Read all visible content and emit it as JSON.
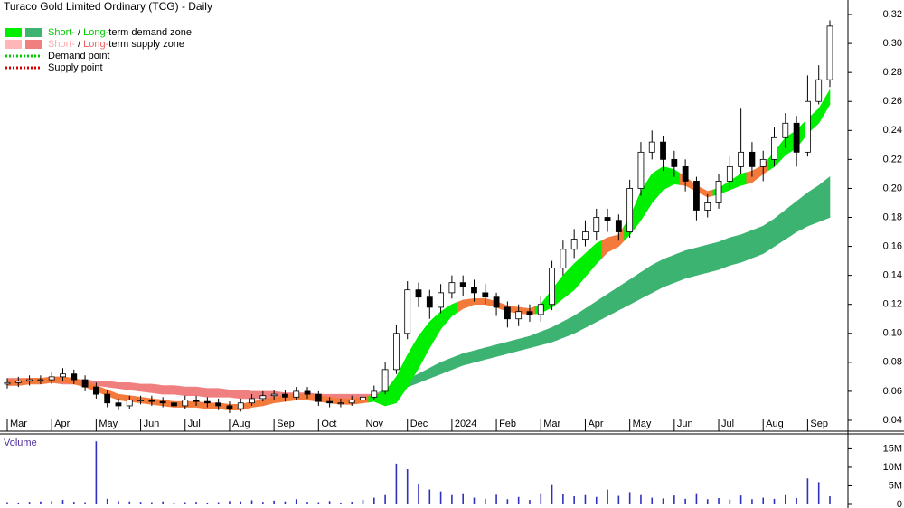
{
  "chart_data": [
    {
      "type": "candlestick",
      "title": "Turaco Gold Limited Ordinary (TCG) - Daily",
      "categories": [
        "Mar",
        null,
        null,
        null,
        "Apr",
        null,
        null,
        null,
        "May",
        null,
        null,
        null,
        "Jun",
        null,
        null,
        null,
        "Jul",
        null,
        null,
        null,
        "Aug",
        null,
        null,
        null,
        "Sep",
        null,
        null,
        null,
        "Oct",
        null,
        null,
        null,
        "Nov",
        null,
        null,
        null,
        "Dec",
        null,
        null,
        null,
        "2024",
        null,
        null,
        null,
        "Feb",
        null,
        null,
        null,
        "Mar",
        null,
        null,
        null,
        "Apr",
        null,
        null,
        null,
        "May",
        null,
        null,
        null,
        "Jun",
        null,
        null,
        null,
        "Jul",
        null,
        null,
        null,
        "Aug",
        null,
        null,
        null,
        "Sep",
        null,
        null
      ],
      "open": [
        0.065,
        0.066,
        0.067,
        0.068,
        0.068,
        0.07,
        0.072,
        0.068,
        0.063,
        0.058,
        0.052,
        0.05,
        0.054,
        0.054,
        0.053,
        0.052,
        0.05,
        0.054,
        0.053,
        0.052,
        0.05,
        0.048,
        0.052,
        0.055,
        0.057,
        0.058,
        0.056,
        0.06,
        0.058,
        0.053,
        0.052,
        0.052,
        0.054,
        0.056,
        0.06,
        0.075,
        0.1,
        0.13,
        0.125,
        0.118,
        0.128,
        0.135,
        0.132,
        0.128,
        0.125,
        0.118,
        0.11,
        0.115,
        0.113,
        0.12,
        0.145,
        0.158,
        0.165,
        0.17,
        0.18,
        0.178,
        0.17,
        0.2,
        0.225,
        0.232,
        0.22,
        0.215,
        0.205,
        0.185,
        0.19,
        0.205,
        0.215,
        0.225,
        0.215,
        0.22,
        0.235,
        0.245,
        0.225,
        0.26,
        0.275
      ],
      "high": [
        0.069,
        0.07,
        0.071,
        0.071,
        0.073,
        0.076,
        0.075,
        0.071,
        0.066,
        0.061,
        0.055,
        0.057,
        0.057,
        0.057,
        0.056,
        0.055,
        0.057,
        0.057,
        0.056,
        0.055,
        0.053,
        0.055,
        0.058,
        0.06,
        0.061,
        0.061,
        0.063,
        0.063,
        0.06,
        0.056,
        0.055,
        0.057,
        0.059,
        0.064,
        0.08,
        0.106,
        0.136,
        0.135,
        0.13,
        0.134,
        0.14,
        0.14,
        0.137,
        0.134,
        0.128,
        0.122,
        0.12,
        0.12,
        0.126,
        0.15,
        0.164,
        0.172,
        0.178,
        0.186,
        0.186,
        0.182,
        0.206,
        0.232,
        0.24,
        0.236,
        0.226,
        0.22,
        0.208,
        0.196,
        0.21,
        0.222,
        0.255,
        0.232,
        0.226,
        0.242,
        0.252,
        0.25,
        0.278,
        0.285,
        0.316
      ],
      "low": [
        0.062,
        0.063,
        0.064,
        0.065,
        0.065,
        0.067,
        0.065,
        0.06,
        0.055,
        0.049,
        0.047,
        0.048,
        0.051,
        0.05,
        0.049,
        0.047,
        0.048,
        0.05,
        0.049,
        0.047,
        0.045,
        0.046,
        0.05,
        0.053,
        0.054,
        0.053,
        0.054,
        0.055,
        0.05,
        0.049,
        0.049,
        0.05,
        0.052,
        0.054,
        0.058,
        0.072,
        0.096,
        0.118,
        0.11,
        0.114,
        0.124,
        0.126,
        0.122,
        0.12,
        0.112,
        0.104,
        0.105,
        0.108,
        0.108,
        0.116,
        0.14,
        0.152,
        0.16,
        0.164,
        0.17,
        0.164,
        0.166,
        0.195,
        0.22,
        0.212,
        0.208,
        0.198,
        0.178,
        0.18,
        0.186,
        0.2,
        0.21,
        0.208,
        0.205,
        0.215,
        0.228,
        0.215,
        0.222,
        0.258,
        0.27
      ],
      "close": [
        0.066,
        0.067,
        0.068,
        0.068,
        0.07,
        0.072,
        0.068,
        0.063,
        0.058,
        0.052,
        0.05,
        0.054,
        0.054,
        0.053,
        0.052,
        0.05,
        0.054,
        0.053,
        0.052,
        0.05,
        0.048,
        0.052,
        0.055,
        0.057,
        0.058,
        0.056,
        0.06,
        0.058,
        0.053,
        0.052,
        0.052,
        0.054,
        0.056,
        0.06,
        0.075,
        0.1,
        0.13,
        0.125,
        0.118,
        0.128,
        0.135,
        0.132,
        0.128,
        0.125,
        0.118,
        0.11,
        0.115,
        0.113,
        0.12,
        0.145,
        0.158,
        0.165,
        0.17,
        0.18,
        0.178,
        0.17,
        0.2,
        0.225,
        0.232,
        0.22,
        0.215,
        0.205,
        0.185,
        0.19,
        0.205,
        0.215,
        0.225,
        0.215,
        0.22,
        0.235,
        0.245,
        0.225,
        0.26,
        0.275,
        0.312
      ],
      "up_color": "#ffffff",
      "down_color": "#000000",
      "zones": [
        {
          "upper": [
            0.069,
            0.069,
            0.069,
            0.069,
            0.069,
            0.068,
            0.068,
            0.068,
            0.067,
            0.067,
            0.066,
            0.066,
            0.065,
            0.065,
            0.064,
            0.064,
            0.063,
            0.063,
            0.062,
            0.062,
            0.061,
            0.061,
            0.06,
            0.06,
            0.06,
            0.059,
            0.059,
            0.059,
            0.058,
            0.058,
            0.058,
            0.058,
            0.058,
            0.058,
            0.061,
            0.064,
            0.068,
            0.072,
            0.076,
            0.08,
            0.083,
            0.086,
            0.088,
            0.09,
            0.092,
            0.094,
            0.096,
            0.098,
            0.101,
            0.104,
            0.108,
            0.112,
            0.117,
            0.122,
            0.127,
            0.132,
            0.137,
            0.142,
            0.147,
            0.151,
            0.154,
            0.157,
            0.159,
            0.161,
            0.163,
            0.166,
            0.168,
            0.171,
            0.174,
            0.179,
            0.185,
            0.191,
            0.197,
            0.202,
            0.208
          ],
          "lower": [
            0.066,
            0.066,
            0.066,
            0.066,
            0.066,
            0.065,
            0.065,
            0.064,
            0.064,
            0.063,
            0.062,
            0.061,
            0.06,
            0.059,
            0.058,
            0.058,
            0.057,
            0.057,
            0.056,
            0.056,
            0.056,
            0.055,
            0.055,
            0.055,
            0.055,
            0.055,
            0.055,
            0.055,
            0.055,
            0.055,
            0.055,
            0.055,
            0.055,
            0.056,
            0.058,
            0.06,
            0.063,
            0.066,
            0.069,
            0.072,
            0.075,
            0.078,
            0.08,
            0.082,
            0.084,
            0.086,
            0.088,
            0.09,
            0.092,
            0.094,
            0.097,
            0.1,
            0.104,
            0.108,
            0.112,
            0.116,
            0.12,
            0.124,
            0.128,
            0.132,
            0.135,
            0.138,
            0.14,
            0.142,
            0.144,
            0.147,
            0.149,
            0.152,
            0.155,
            0.16,
            0.165,
            0.17,
            0.174,
            0.177,
            0.18
          ],
          "colors": [
            "#f08080",
            "#f08080",
            "#f08080",
            "#f08080",
            "#f08080",
            "#f08080",
            "#f08080",
            "#f08080",
            "#f08080",
            "#f08080",
            "#f08080",
            "#f08080",
            "#f08080",
            "#f08080",
            "#f08080",
            "#f08080",
            "#f08080",
            "#f08080",
            "#f08080",
            "#f08080",
            "#f08080",
            "#f08080",
            "#f08080",
            "#f08080",
            "#f08080",
            "#f08080",
            "#f08080",
            "#f08080",
            "#f08080",
            "#f08080",
            "#f08080",
            "#f08080",
            "#f08080",
            "#f08080",
            "#3cb371",
            "#3cb371",
            "#3cb371",
            "#3cb371",
            "#3cb371",
            "#3cb371",
            "#3cb371",
            "#3cb371",
            "#3cb371",
            "#3cb371",
            "#3cb371",
            "#3cb371",
            "#3cb371",
            "#3cb371",
            "#3cb371",
            "#3cb371",
            "#3cb371",
            "#3cb371",
            "#3cb371",
            "#3cb371",
            "#3cb371",
            "#3cb371",
            "#3cb371",
            "#3cb371",
            "#3cb371",
            "#3cb371",
            "#3cb371",
            "#3cb371",
            "#3cb371",
            "#3cb371",
            "#3cb371",
            "#3cb371",
            "#3cb371",
            "#3cb371",
            "#3cb371",
            "#3cb371",
            "#3cb371",
            "#3cb371",
            "#3cb371",
            "#3cb371",
            "#3cb371"
          ]
        },
        {
          "upper": [
            0.068,
            0.068,
            0.069,
            0.069,
            0.07,
            0.07,
            0.069,
            0.067,
            0.064,
            0.061,
            0.058,
            0.057,
            0.056,
            0.055,
            0.054,
            0.053,
            0.053,
            0.053,
            0.052,
            0.052,
            0.051,
            0.051,
            0.053,
            0.054,
            0.056,
            0.057,
            0.058,
            0.058,
            0.057,
            0.056,
            0.055,
            0.055,
            0.056,
            0.057,
            0.06,
            0.07,
            0.085,
            0.098,
            0.108,
            0.115,
            0.12,
            0.123,
            0.124,
            0.124,
            0.122,
            0.119,
            0.118,
            0.117,
            0.12,
            0.13,
            0.14,
            0.148,
            0.155,
            0.162,
            0.166,
            0.168,
            0.18,
            0.198,
            0.21,
            0.215,
            0.213,
            0.208,
            0.202,
            0.198,
            0.2,
            0.205,
            0.21,
            0.212,
            0.216,
            0.225,
            0.235,
            0.24,
            0.248,
            0.255,
            0.268
          ],
          "lower": [
            0.064,
            0.064,
            0.065,
            0.065,
            0.066,
            0.066,
            0.065,
            0.063,
            0.06,
            0.057,
            0.054,
            0.053,
            0.052,
            0.051,
            0.05,
            0.049,
            0.049,
            0.049,
            0.048,
            0.048,
            0.047,
            0.047,
            0.049,
            0.05,
            0.052,
            0.053,
            0.054,
            0.054,
            0.053,
            0.052,
            0.051,
            0.051,
            0.052,
            0.053,
            0.05,
            0.052,
            0.063,
            0.076,
            0.09,
            0.103,
            0.112,
            0.117,
            0.12,
            0.12,
            0.118,
            0.115,
            0.114,
            0.113,
            0.114,
            0.118,
            0.124,
            0.13,
            0.139,
            0.148,
            0.156,
            0.16,
            0.168,
            0.178,
            0.19,
            0.199,
            0.203,
            0.202,
            0.198,
            0.194,
            0.196,
            0.199,
            0.202,
            0.204,
            0.21,
            0.215,
            0.223,
            0.228,
            0.238,
            0.245,
            0.258
          ],
          "colors": [
            "#f47a3c",
            "#f47a3c",
            "#f47a3c",
            "#f47a3c",
            "#f47a3c",
            "#f47a3c",
            "#f47a3c",
            "#f47a3c",
            "#f47a3c",
            "#f47a3c",
            "#f47a3c",
            "#f47a3c",
            "#f47a3c",
            "#f47a3c",
            "#f47a3c",
            "#f47a3c",
            "#f47a3c",
            "#f47a3c",
            "#f47a3c",
            "#f47a3c",
            "#f47a3c",
            "#f47a3c",
            "#f47a3c",
            "#f47a3c",
            "#f47a3c",
            "#f47a3c",
            "#f47a3c",
            "#f47a3c",
            "#f47a3c",
            "#f47a3c",
            "#f47a3c",
            "#f47a3c",
            "#f47a3c",
            "#00ee00",
            "#00ee00",
            "#00ee00",
            "#00ee00",
            "#00ee00",
            "#00ee00",
            "#00ee00",
            "#00ee00",
            "#f47a3c",
            "#f47a3c",
            "#f47a3c",
            "#f47a3c",
            "#f47a3c",
            "#f47a3c",
            "#f47a3c",
            "#00ee00",
            "#00ee00",
            "#00ee00",
            "#00ee00",
            "#00ee00",
            "#00ee00",
            "#f47a3c",
            "#f47a3c",
            "#00ee00",
            "#00ee00",
            "#00ee00",
            "#00ee00",
            "#00ee00",
            "#f47a3c",
            "#f47a3c",
            "#f47a3c",
            "#00ee00",
            "#00ee00",
            "#00ee00",
            "#f47a3c",
            "#f47a3c",
            "#00ee00",
            "#00ee00",
            "#00ee00",
            "#00ee00",
            "#00ee00",
            "#00ee00"
          ]
        }
      ],
      "ylim": [
        0.0325,
        0.33
      ],
      "yticks": [
        0.04,
        0.06,
        0.08,
        {
          "value": 0.1,
          "label": "0.10"
        },
        0.12,
        0.14,
        0.16,
        0.18,
        {
          "value": 0.2,
          "label": "0.20"
        },
        0.22,
        0.24,
        0.26,
        0.28,
        {
          "value": 0.3,
          "label": "0.30"
        },
        0.32
      ],
      "legend": [
        {
          "swatches": [
            "#00ee00",
            "#3cb371"
          ],
          "parts": [
            "Short-",
            " / ",
            "Long-",
            "term demand zone"
          ],
          "part_colors": [
            "#00cc00",
            "#000000",
            "#00cc00",
            "#000000"
          ]
        },
        {
          "swatches": [
            "#ffb6b6",
            "#f08080"
          ],
          "parts": [
            "Short-",
            " / ",
            "Long-",
            "term supply zone"
          ],
          "part_colors": [
            "#ffaaaa",
            "#000000",
            "#f06060",
            "#000000"
          ]
        },
        {
          "line": "#00cc00",
          "parts": [
            "Demand point"
          ],
          "part_colors": [
            "#000000"
          ]
        },
        {
          "line": "#dd0000",
          "parts": [
            "Supply point"
          ],
          "part_colors": [
            "#000000"
          ]
        }
      ]
    },
    {
      "type": "bar",
      "title": "Volume",
      "color": "#3030c0",
      "values": [
        600000,
        500000,
        700000,
        800000,
        900000,
        1200000,
        700000,
        600000,
        17000000,
        1500000,
        900000,
        800000,
        700000,
        600000,
        800000,
        500000,
        600000,
        700000,
        500000,
        600000,
        900000,
        800000,
        1100000,
        700000,
        1000000,
        800000,
        1400000,
        700000,
        600000,
        900000,
        500000,
        700000,
        1200000,
        1800000,
        2500000,
        11000000,
        9500000,
        5500000,
        4000000,
        3500000,
        2500000,
        3000000,
        1800000,
        1500000,
        2600000,
        1400000,
        2000000,
        1200000,
        3000000,
        5200000,
        2800000,
        2200000,
        2500000,
        2000000,
        4000000,
        2300000,
        3300000,
        2500000,
        1800000,
        1600000,
        2400000,
        1500000,
        3000000,
        1400000,
        1700000,
        1300000,
        2400000,
        1400000,
        1800000,
        1500000,
        2500000,
        1700000,
        7000000,
        6000000,
        2200000
      ],
      "ylim": [
        0,
        19000000
      ],
      "yticks": [
        0,
        {
          "value": 5000000,
          "label": "5M"
        },
        {
          "value": 10000000,
          "label": "10M"
        },
        {
          "value": 15000000,
          "label": "15M"
        }
      ]
    }
  ]
}
